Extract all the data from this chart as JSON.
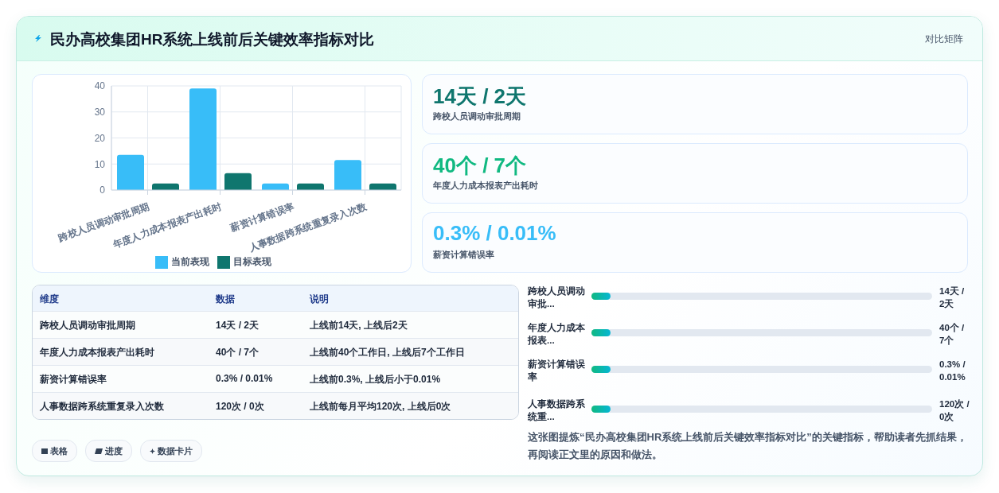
{
  "chart_data": [
    {
      "type": "bar",
      "title": "民办高校集团HR系统上线前后关键效率指标对比",
      "categories": [
        "跨校人员调动审批周期",
        "年度人力成本报表产出耗时",
        "薪资计算错误率",
        "人事数据跨系统重复录入次数"
      ],
      "series": [
        {
          "name": "当前表现",
          "color": "#38bdf8",
          "values": [
            13.5,
            39,
            2.5,
            11.5
          ]
        },
        {
          "name": "目标表现",
          "color": "#0f766e",
          "values": [
            2.5,
            6.5,
            2.5,
            2.5
          ]
        }
      ],
      "ylim": [
        0,
        40
      ],
      "yticks": [
        0,
        10,
        20,
        30,
        40
      ],
      "grid": true,
      "legend": "bottom"
    },
    {
      "type": "other",
      "annotations": [
        "对比矩阵",
        "14天 / 2天",
        "跨校人员调动审批周期",
        "40个 / 7个",
        "年度人力成本报表产出耗时",
        "0.3% / 0.01%",
        "薪资计算错误率"
      ]
    },
    {
      "type": "other",
      "annotations": [
        "维度",
        "数据",
        "说明",
        "跨校人员调动审批周期",
        "14天 / 2天",
        "上线前14天, 上线后2天",
        "年度人力成本报表产出耗时",
        "40个 / 7个",
        "上线前40个工作日, 上线后7个工作日",
        "薪资计算错误率",
        "0.3% / 0.01%",
        "上线前0.3%, 上线后小于0.01%",
        "人事数据跨系统重复录入次数",
        "120次 / 0次",
        "上线前每月平均120次, 上线后0次"
      ]
    },
    {
      "type": "other",
      "annotations": [
        "跨校人员调动审批...",
        "14天 / 2天",
        "年度人力成本报表...",
        "40个 / 7个",
        "薪资计算错误率",
        "0.3% / 0.01%",
        "人事数据跨系统重...",
        "120次 / 0次",
        "这张图提炼“民办高校集团HR系统上线前后关键效率指标对比”的关键指标，帮助读者先抓结果，再阅读正文里的原因和做法。"
      ]
    },
    {
      "type": "other",
      "annotations": [
        "表格",
        "进度",
        "数据卡片"
      ]
    }
  ]
}
